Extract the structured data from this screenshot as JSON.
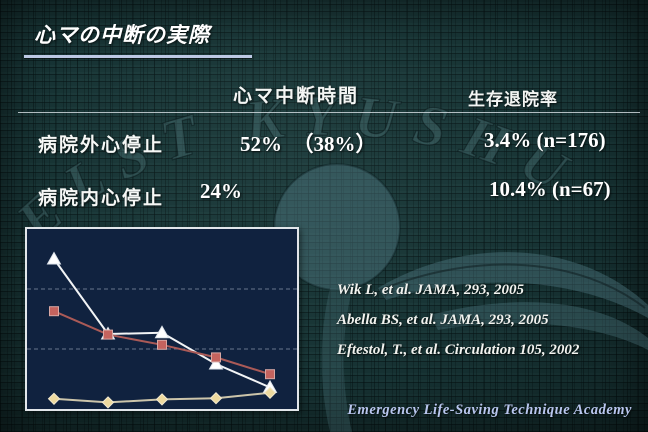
{
  "slide": {
    "title": "心マの中断の実際",
    "watermark": "ELST KYUSHU",
    "footer": "Emergency Life-Saving Technique Academy"
  },
  "table": {
    "col_headers": [
      "心マ中断時間",
      "生存退院率"
    ],
    "rows": [
      {
        "label": "病院外心停止",
        "interruption": "52%　（38%）",
        "survival": "3.4% (n=176)"
      },
      {
        "label": "病院内心停止",
        "interruption": "24%",
        "survival": "10.4% (n=67)"
      }
    ]
  },
  "citations": [
    "Wik L, et al. JAMA, 293, 2005",
    "Abella BS, et al. JAMA, 293, 2005",
    "Eftestol, T., et al. Circulation 105, 2002"
  ],
  "chart_data": {
    "type": "line",
    "x": [
      1,
      2,
      3,
      4,
      5
    ],
    "series": [
      {
        "name": "triangle-series",
        "marker": "triangle",
        "color": "#f2f4f6",
        "marker_color": "#ffffff",
        "values": [
          2.5,
          1.25,
          1.27,
          0.75,
          0.36
        ]
      },
      {
        "name": "square-series",
        "marker": "square",
        "color": "#aa5a57",
        "marker_color": "#c4635e",
        "values": [
          1.63,
          1.24,
          1.07,
          0.86,
          0.58
        ]
      },
      {
        "name": "diamond-series",
        "marker": "diamond",
        "color": "#ccc5ab",
        "marker_color": "#eeda9f",
        "values": [
          0.17,
          0.11,
          0.16,
          0.18,
          0.27
        ]
      }
    ],
    "title": "",
    "xlabel": "",
    "ylabel": "",
    "ylim": [
      0,
      3
    ],
    "gridlines_y": [
      1,
      2
    ],
    "grid_color": "#8e9bb0",
    "grid_style": "dashed",
    "plot_bg": "#10223f",
    "legend": "none",
    "axis_tick_labels": "none"
  },
  "colors": {
    "background": "#173334",
    "title_underline": "#bcc8e4",
    "footer_text": "#b9c6ee",
    "text_primary": "#ffffff"
  }
}
